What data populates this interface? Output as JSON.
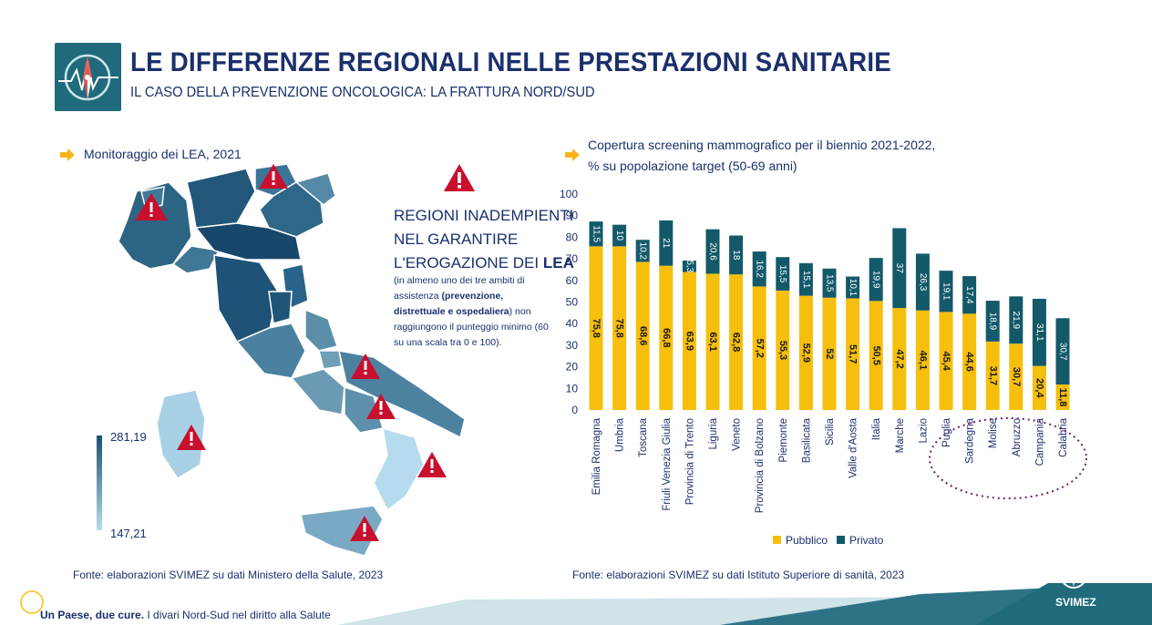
{
  "header": {
    "title": "LE DIFFERENZE REGIONALI NELLE PRESTAZIONI SANITARIE",
    "subtitle": "IL CASO DELLA PREVENZIONE ONCOLOGICA: LA FRATTURA NORD/SUD"
  },
  "left_panel": {
    "section_title": "Monitoraggio dei LEA, 2021",
    "warning_lines": [
      "REGIONI INADEMPIENTI",
      "NEL GARANTIRE",
      "L'EROGAZIONE DEI "
    ],
    "warning_bold": "LEA",
    "warning_note_1": "(in almeno uno dei tre ambiti di assistenza ",
    "warning_note_bold": "(prevenzione, distrettuale e ospedaliera",
    "warning_note_2": ") non raggiungono il punteggio minimo (60 su una scala tra 0 e 100).",
    "legend_max": "281,19",
    "legend_min": "147,21",
    "source": "Fonte: elaborazioni SVIMEZ su dati Ministero della Salute, 2023"
  },
  "chart_data": {
    "type": "bar",
    "stacked": true,
    "title": "Copertura screening mammografico per il biennio 2021-2022,",
    "title_line2": "% su popolazione target (50-69 anni)",
    "categories": [
      "Emilia Romagna",
      "Umbria",
      "Toscana",
      "Friuli Venezia Giulia",
      "Provincia di Trento",
      "Liguria",
      "Veneto",
      "Provincia di Bolzano",
      "Piemonte",
      "Basilicata",
      "Sicilia",
      "Valle d'Aosta",
      "Italia",
      "Marche",
      "Lazio",
      "Puglia",
      "Sardegna",
      "Molise",
      "Abruzzo",
      "Campania",
      "Calabria"
    ],
    "series": [
      {
        "name": "Pubblico",
        "color": "#f6bf0d",
        "values": [
          75.8,
          75.8,
          68.6,
          66.8,
          63.9,
          63.1,
          62.8,
          57.2,
          55.3,
          52.9,
          52,
          51.7,
          50.5,
          47.2,
          46.1,
          45.4,
          44.6,
          31.7,
          30.7,
          20.4,
          11.8
        ],
        "labels": [
          "75,8",
          "75,8",
          "68,6",
          "66,8",
          "63,9",
          "63,1",
          "62,8",
          "57,2",
          "55,3",
          "52,9",
          "52",
          "51,7",
          "50,5",
          "47,2",
          "46,1",
          "45,4",
          "44,6",
          "31,7",
          "30,7",
          "20,4",
          "11,8"
        ]
      },
      {
        "name": "Privato",
        "color": "#13596a",
        "values": [
          11.5,
          10,
          10.2,
          21,
          5.3,
          20.6,
          18,
          16.2,
          15.5,
          15.1,
          13.5,
          10.1,
          19.9,
          37,
          26.3,
          19.1,
          17.4,
          18.9,
          21.9,
          31.1,
          30.7
        ],
        "labels": [
          "11,5",
          "10",
          "10,2",
          "21",
          "5,3",
          "20,6",
          "18",
          "16,2",
          "15,5",
          "15,1",
          "13,5",
          "10,1",
          "19,9",
          "37",
          "26,3",
          "19,1",
          "17,4",
          "18,9",
          "21,9",
          "31,1",
          "30,7"
        ]
      }
    ],
    "yticks": [
      "0",
      "10",
      "20",
      "30",
      "40",
      "50",
      "60",
      "70",
      "80",
      "90",
      "100"
    ],
    "ylim": [
      0,
      100
    ],
    "legend": [
      "Pubblico",
      "Privato"
    ]
  },
  "right_panel": {
    "source": "Fonte: elaborazioni SVIMEZ su dati Istituto Superiore di sanità, 2023"
  },
  "footer": {
    "text_bold": "Un Paese, due cure.",
    "text_rest": " I divari Nord-Sud nel diritto alla Salute",
    "brand": "SVIMEZ"
  },
  "colors": {
    "navy": "#1b2f6d",
    "teal": "#13596a",
    "yellow": "#f6bf0d",
    "warning_red": "#c8102e",
    "arrow": "#f6b41a"
  }
}
